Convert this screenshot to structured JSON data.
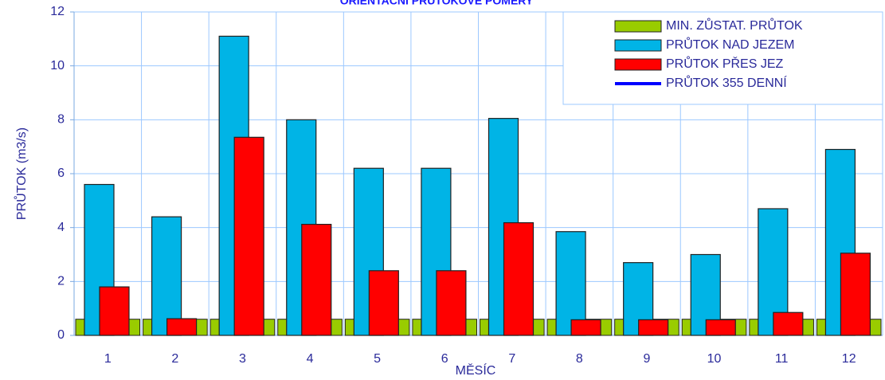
{
  "chart_data": {
    "type": "bar",
    "title": "ORIENTAČNÍ PRŮTOKOVÉ POMĚRY",
    "x_label": "MĚSÍC",
    "y_label": "PRŮTOK (m3/s)",
    "categories": [
      "1",
      "2",
      "3",
      "4",
      "5",
      "6",
      "7",
      "8",
      "9",
      "10",
      "11",
      "12"
    ],
    "series": [
      {
        "name": "MIN. ZŮSTAT. PRŮTOK",
        "color": "#99cc00",
        "kind": "band",
        "values": [
          0.6,
          0.6,
          0.6,
          0.6,
          0.6,
          0.6,
          0.6,
          0.6,
          0.6,
          0.6,
          0.6,
          0.6
        ]
      },
      {
        "name": "PRŮTOK NAD JEZEM",
        "color": "#00b4e6",
        "kind": "bar",
        "values": [
          5.6,
          4.4,
          11.1,
          8.0,
          6.2,
          6.2,
          8.05,
          3.85,
          2.7,
          3.0,
          4.7,
          6.9
        ]
      },
      {
        "name": "PRŮTOK PŘES JEZ",
        "color": "#ff0000",
        "kind": "bar",
        "values": [
          1.8,
          0.62,
          7.35,
          4.12,
          2.4,
          2.4,
          4.18,
          0.58,
          0.58,
          0.58,
          0.85,
          3.05
        ]
      },
      {
        "name": "PRŮTOK 355 DENNÍ",
        "color": "#0000ff",
        "kind": "line",
        "values": [
          null,
          null,
          null,
          null,
          null,
          null,
          null,
          null,
          null,
          null,
          null,
          null
        ]
      }
    ],
    "ylim": [
      0,
      12
    ],
    "yticks": [
      0,
      2,
      4,
      6,
      8,
      10,
      12
    ],
    "grid": true,
    "legend": "top-right"
  }
}
